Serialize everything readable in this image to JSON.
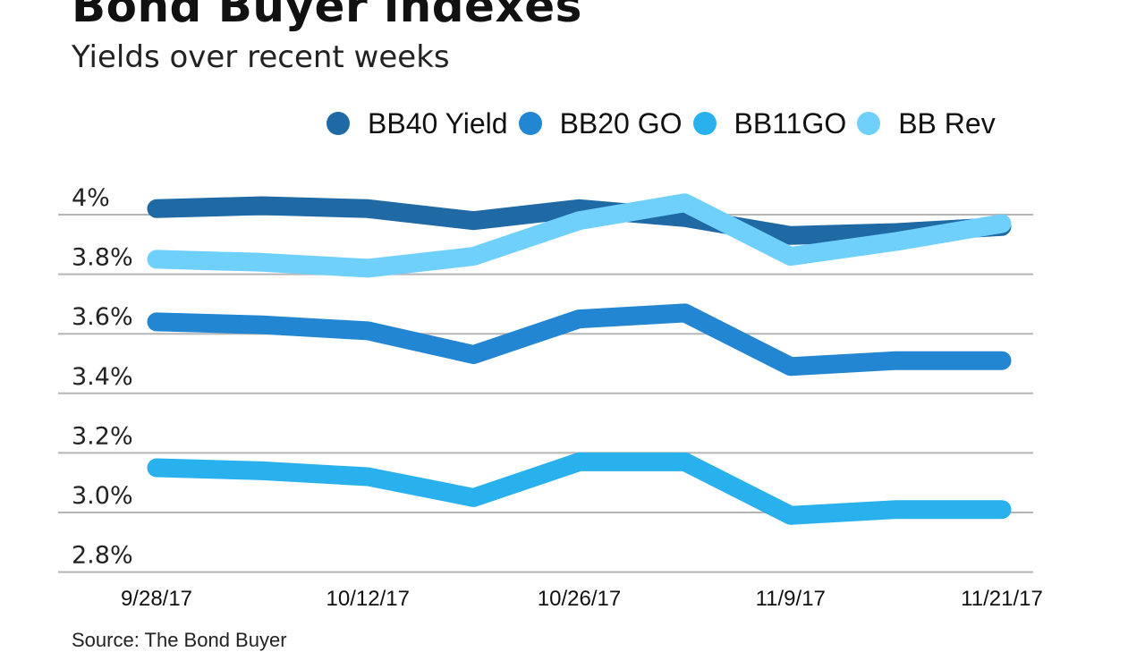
{
  "header": {
    "title": "Bond Buyer indexes",
    "subtitle": "Yields over recent weeks"
  },
  "legend": [
    {
      "label": "BB40 Yield",
      "color": "#1f6aa5"
    },
    {
      "label": "BB20 GO",
      "color": "#2286d2"
    },
    {
      "label": "BB11GO",
      "color": "#28b1ec"
    },
    {
      "label": "BB Rev",
      "color": "#6fd0fb"
    }
  ],
  "source": "Source: The Bond Buyer",
  "chart_data": {
    "type": "line",
    "title": "Bond Buyer indexes",
    "subtitle": "Yields over recent weeks",
    "xlabel": "",
    "ylabel": "",
    "x_tick_labels": [
      "9/28/17",
      "10/12/17",
      "10/26/17",
      "11/9/17",
      "11/21/17"
    ],
    "y_tick_labels": [
      "4%",
      "3.8%",
      "3.6%",
      "3.4%",
      "3.2%",
      "3.0%",
      "2.8%"
    ],
    "y_ticks": [
      4.0,
      3.8,
      3.6,
      3.4,
      3.2,
      3.0,
      2.8
    ],
    "ylim": [
      2.8,
      4.0
    ],
    "grid": true,
    "legend_position": "top",
    "x": [
      "9/28/17",
      "10/5/17",
      "10/12/17",
      "10/19/17",
      "10/26/17",
      "11/2/17",
      "11/9/17",
      "11/16/17",
      "11/21/17"
    ],
    "series": [
      {
        "name": "BB40 Yield",
        "color": "#1f6aa5",
        "values": [
          4.02,
          4.03,
          4.02,
          3.98,
          4.02,
          3.99,
          3.93,
          3.94,
          3.96
        ]
      },
      {
        "name": "BB20 GO",
        "color": "#2286d2",
        "values": [
          3.64,
          3.63,
          3.61,
          3.53,
          3.65,
          3.67,
          3.49,
          3.51,
          3.51
        ]
      },
      {
        "name": "BB11GO",
        "color": "#28b1ec",
        "values": [
          3.15,
          3.14,
          3.12,
          3.05,
          3.17,
          3.17,
          2.99,
          3.01,
          3.01
        ]
      },
      {
        "name": "BB Rev",
        "color": "#6fd0fb",
        "values": [
          3.85,
          3.84,
          3.82,
          3.86,
          3.98,
          4.04,
          3.86,
          3.91,
          3.97
        ]
      }
    ]
  }
}
